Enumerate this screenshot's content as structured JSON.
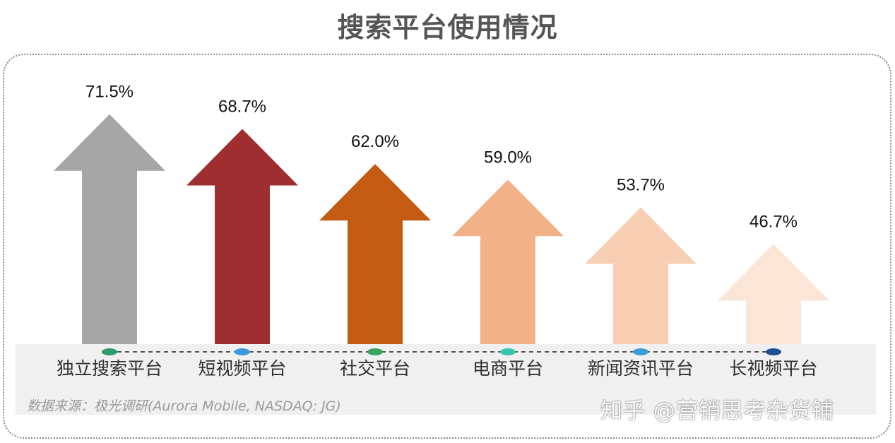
{
  "chart_data": {
    "type": "bar",
    "title": "搜索平台使用情况",
    "categories": [
      "独立搜索平台",
      "短视频平台",
      "社交平台",
      "电商平台",
      "新闻资讯平台",
      "长视频平台"
    ],
    "values": [
      71.5,
      68.7,
      62.0,
      59.0,
      53.7,
      46.7
    ],
    "value_labels": [
      "71.5%",
      "68.7%",
      "62.0%",
      "59.0%",
      "53.7%",
      "46.7%"
    ],
    "unit": "%",
    "bar_shape": "up-arrow",
    "bar_colors": [
      "#a6a6a6",
      "#9e2e2f",
      "#c35b12",
      "#f2b186",
      "#f8cfb2",
      "#fbe5d6"
    ],
    "marker_colors": [
      "#2f9a6c",
      "#3b9ad9",
      "#37a35f",
      "#36c6ad",
      "#3b9bd5",
      "#1f4e93"
    ],
    "grid": false,
    "legend": "none"
  },
  "source_text": "数据来源：极光调研(Aurora Mobile, NASDAQ: JG)",
  "watermark": "知乎 @营销思考杂货铺"
}
